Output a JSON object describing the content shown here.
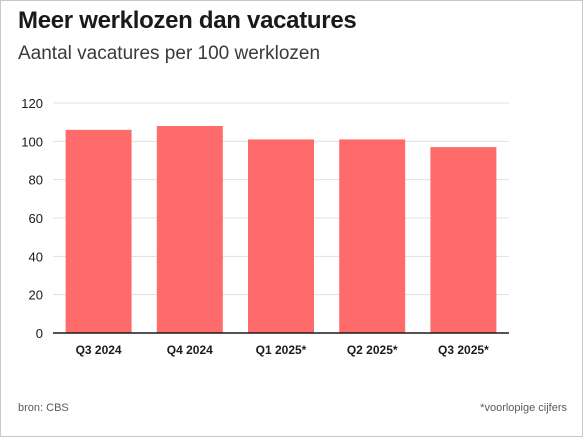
{
  "header": {
    "title": "Meer werklozen dan vacatures",
    "subtitle": "Aantal vacatures per 100 werklozen"
  },
  "footer": {
    "source": "bron: CBS",
    "footnote": "*voorlopige cijfers"
  },
  "colors": {
    "bar": "#ff6b6b",
    "grid": "#e0e0e0",
    "axis": "#1a1a1a"
  },
  "chart_data": {
    "type": "bar",
    "title": "Meer werklozen dan vacatures",
    "subtitle": "Aantal vacatures per 100 werklozen",
    "xlabel": "",
    "ylabel": "",
    "categories": [
      "Q3 2024",
      "Q4 2024",
      "Q1 2025*",
      "Q2 2025*",
      "Q3 2025*"
    ],
    "values": [
      106,
      108,
      101,
      101,
      97
    ],
    "ylim": [
      0,
      120
    ],
    "yticks": [
      0,
      20,
      40,
      60,
      80,
      100,
      120
    ],
    "grid": true,
    "legend": "none"
  }
}
